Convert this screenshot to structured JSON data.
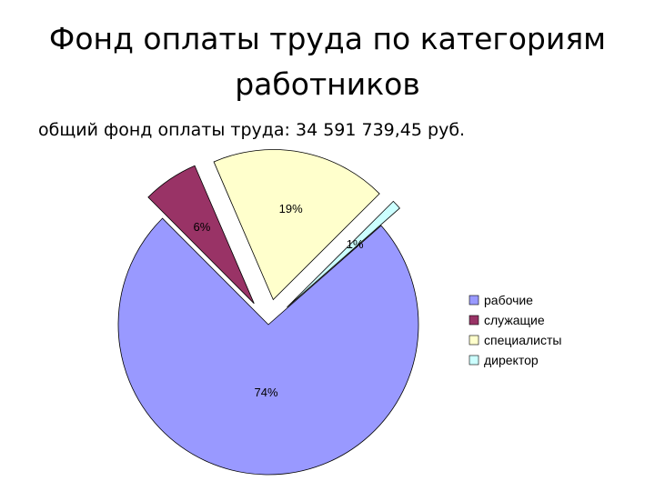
{
  "title": "Фонд оплаты труда по категориям работников",
  "subtitle": "общий фонд оплаты труда: 34 591 739,45 руб.",
  "chart_data": {
    "type": "pie",
    "exploded": true,
    "legend_position": "right",
    "slices": [
      {
        "name": "рабочие",
        "value": 74,
        "label": "74%",
        "color": "#9999ff"
      },
      {
        "name": "служащие",
        "value": 6,
        "label": "6%",
        "color": "#993366"
      },
      {
        "name": "специалисты",
        "value": 19,
        "label": "19%",
        "color": "#ffffcc"
      },
      {
        "name": "директор",
        "value": 1,
        "label": "1%",
        "color": "#ccffff"
      }
    ]
  }
}
